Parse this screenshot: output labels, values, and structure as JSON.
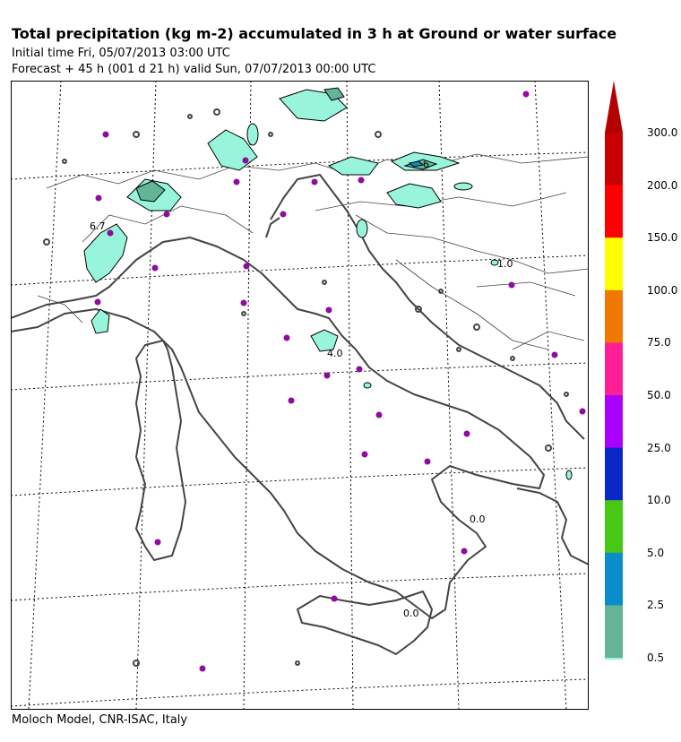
{
  "header": {
    "title": "Total precipitation (kg m-2) accumulated in   3 h at Ground or water surface",
    "initial_time": "Initial time  Fri, 05/07/2013  03:00 UTC",
    "forecast": "Forecast  +  45 h  (001 d 21 h)  valid Sun, 07/07/2013 00:00 UTC"
  },
  "footer": {
    "credit": "Moloch Model, CNR-ISAC, Italy"
  },
  "map": {
    "contour_labels": [
      "6.7",
      "6",
      "1.0",
      "4.0",
      "0.0",
      "0.0"
    ],
    "city_marker_color": "#8e0c9e",
    "precip_fill_color": "#98f5dc"
  },
  "colorbar": {
    "levels": [
      "300.0",
      "200.0",
      "150.0",
      "100.0",
      "75.0",
      "50.0",
      "25.0",
      "10.0",
      "5.0",
      "2.5",
      "0.5"
    ],
    "colors": [
      "#c80000",
      "#ff0000",
      "#ffff00",
      "#f07800",
      "#ff1e96",
      "#aa00ff",
      "#0a28c8",
      "#46c814",
      "#0a8ccd",
      "#64b496",
      "#96f5dc"
    ],
    "top_arrow_color": "#b40000"
  }
}
